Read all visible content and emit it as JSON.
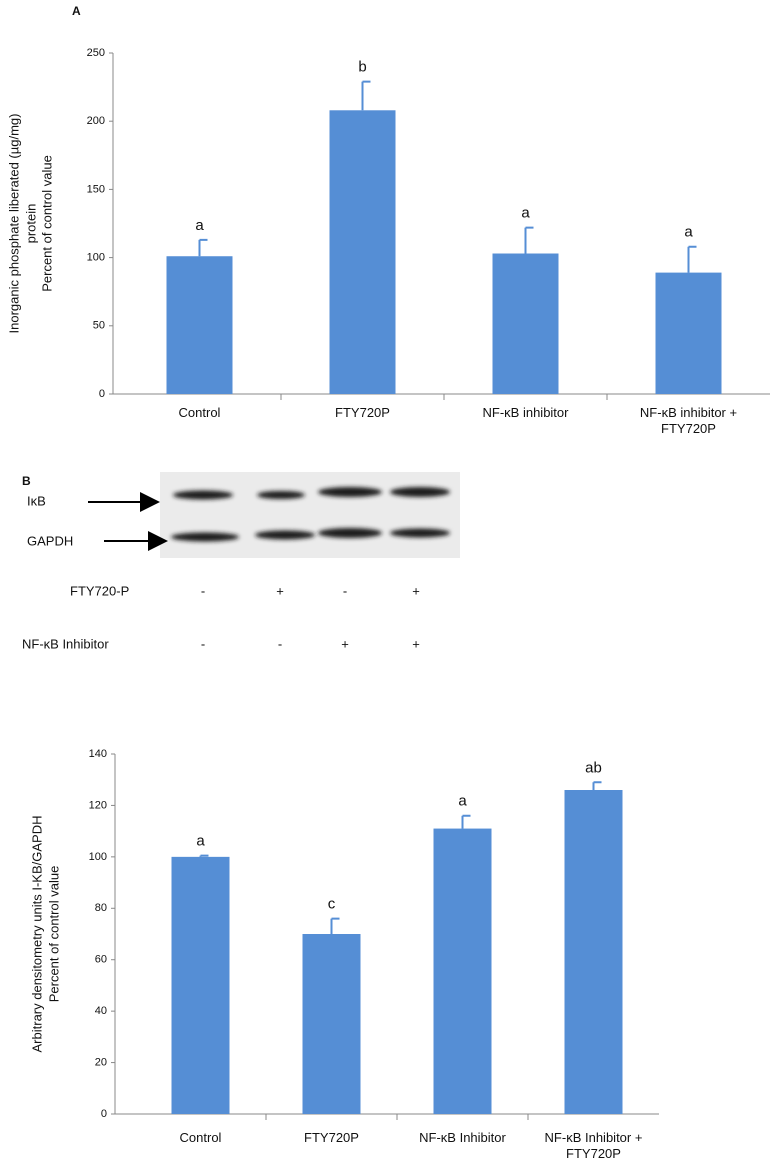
{
  "chart_data": [
    {
      "type": "bar",
      "panel": "A",
      "ylabel": [
        "Inorganic phosphate liberated  (µg/mg)",
        "protein",
        "Percent of control value"
      ],
      "categories": [
        "Control",
        "FTY720P",
        "NF-κB inhibitor",
        "NF-κB inhibitor + FTY720P"
      ],
      "values": [
        101,
        208,
        103,
        89
      ],
      "errors": [
        12,
        21,
        19,
        19
      ],
      "annotations": [
        "a",
        "b",
        "a",
        "a"
      ],
      "color": "#558ed5",
      "ylim": [
        0,
        250
      ],
      "yticks": [
        0,
        50,
        100,
        150,
        200,
        250
      ],
      "grid": false
    },
    {
      "type": "bar",
      "ylabel": [
        "Arbitrary densitometry units I-KB/GAPDH",
        "Percent of control value"
      ],
      "categories": [
        "Control",
        "FTY720P",
        "NF-κB Inhibitor",
        "NF-κB Inhibitor + FTY720P"
      ],
      "values": [
        100,
        70,
        111,
        126
      ],
      "errors": [
        0.5,
        6,
        5,
        3
      ],
      "annotations": [
        "a",
        "c",
        "a",
        "ab"
      ],
      "color": "#558ed5",
      "ylim": [
        0,
        140
      ],
      "yticks": [
        0,
        20,
        40,
        60,
        80,
        100,
        120,
        140
      ],
      "grid": false
    }
  ],
  "blot": {
    "panel": "B",
    "bands": [
      "IκB",
      "GAPDH"
    ],
    "rows": [
      {
        "label": "FTY720-P",
        "signs": [
          "-",
          "+",
          "-",
          "+"
        ]
      },
      {
        "label": "NF-κB Inhibitor",
        "signs": [
          "-",
          "-",
          "+",
          "+"
        ]
      }
    ]
  }
}
